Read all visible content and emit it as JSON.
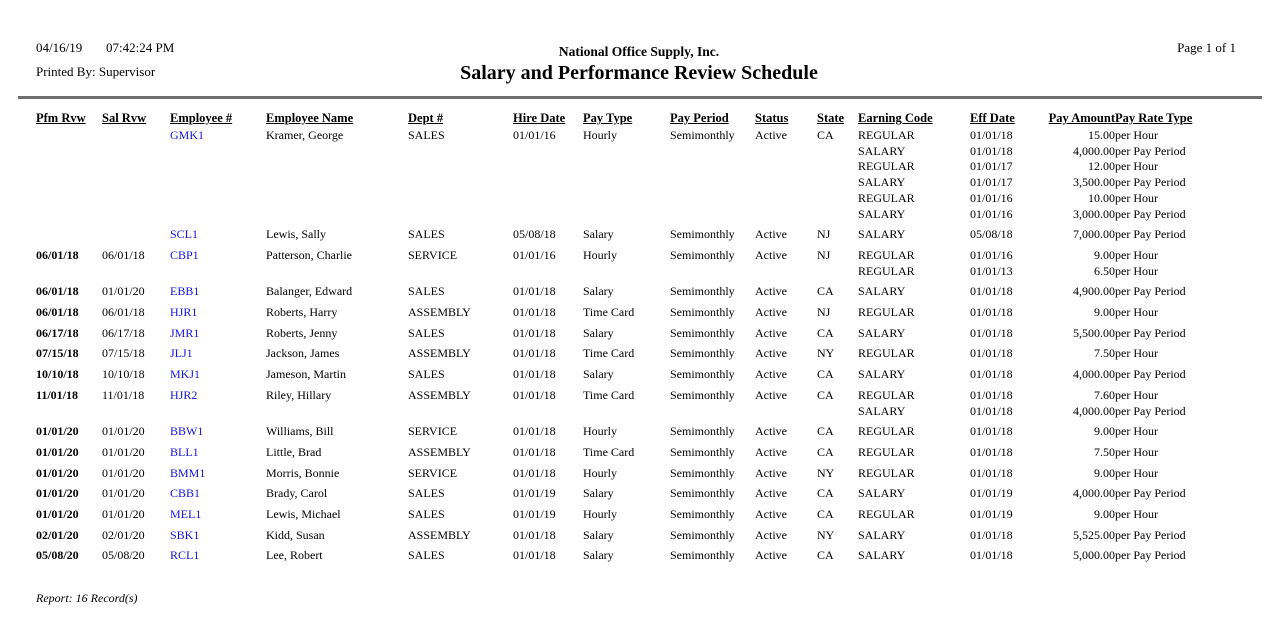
{
  "header": {
    "date": "04/16/19",
    "time": "07:42:24 PM",
    "printed_by": "Printed By: Supervisor",
    "company": "National Office Supply, Inc.",
    "title": "Salary and Performance Review Schedule",
    "page_label": "Page 1 of  1"
  },
  "colors": {
    "link_blue": "#1414e0",
    "rule_gray": "#6e6e6e",
    "text": "#000000"
  },
  "table": {
    "columns": [
      {
        "key": "pfm-rvw",
        "label": "Pfm Rvw"
      },
      {
        "key": "sal-rvw",
        "label": "Sal Rvw"
      },
      {
        "key": "employee-id",
        "label": "Employee #"
      },
      {
        "key": "employee-name",
        "label": "Employee Name"
      },
      {
        "key": "dept",
        "label": "Dept #"
      },
      {
        "key": "hire-date",
        "label": "Hire Date"
      },
      {
        "key": "pay-type",
        "label": "Pay Type"
      },
      {
        "key": "pay-period",
        "label": "Pay Period"
      },
      {
        "key": "status",
        "label": "Status"
      },
      {
        "key": "state",
        "label": "State"
      },
      {
        "key": "earning-code",
        "label": "Earning Code"
      },
      {
        "key": "eff-date",
        "label": "Eff Date"
      },
      {
        "key": "pay-amount",
        "label": "Pay Amount"
      },
      {
        "key": "pay-rate-type",
        "label": "Pay Rate Type"
      }
    ],
    "employees": [
      {
        "pfm_rvw": "",
        "sal_rvw": "",
        "employee_id": "GMK1",
        "name": "Kramer, George",
        "dept": "SALES",
        "hire_date": "01/01/16",
        "pay_type": "Hourly",
        "pay_period": "Semimonthly",
        "status": "Active",
        "state": "CA",
        "earnings": [
          {
            "code": "REGULAR",
            "eff_date": "01/01/18",
            "amount": "15.00",
            "rate_type": "per Hour"
          },
          {
            "code": "SALARY",
            "eff_date": "01/01/18",
            "amount": "4,000.00",
            "rate_type": "per Pay Period"
          },
          {
            "code": "REGULAR",
            "eff_date": "01/01/17",
            "amount": "12.00",
            "rate_type": "per Hour"
          },
          {
            "code": "SALARY",
            "eff_date": "01/01/17",
            "amount": "3,500.00",
            "rate_type": "per Pay Period"
          },
          {
            "code": "REGULAR",
            "eff_date": "01/01/16",
            "amount": "10.00",
            "rate_type": "per Hour"
          },
          {
            "code": "SALARY",
            "eff_date": "01/01/16",
            "amount": "3,000.00",
            "rate_type": "per Pay Period"
          }
        ]
      },
      {
        "pfm_rvw": "",
        "sal_rvw": "",
        "employee_id": "SCL1",
        "name": "Lewis, Sally",
        "dept": "SALES",
        "hire_date": "05/08/18",
        "pay_type": "Salary",
        "pay_period": "Semimonthly",
        "status": "Active",
        "state": "NJ",
        "earnings": [
          {
            "code": "SALARY",
            "eff_date": "05/08/18",
            "amount": "7,000.00",
            "rate_type": "per Pay Period"
          }
        ]
      },
      {
        "pfm_rvw": "06/01/18",
        "sal_rvw": "06/01/18",
        "employee_id": "CBP1",
        "name": "Patterson, Charlie",
        "dept": "SERVICE",
        "hire_date": "01/01/16",
        "pay_type": "Hourly",
        "pay_period": "Semimonthly",
        "status": "Active",
        "state": "NJ",
        "earnings": [
          {
            "code": "REGULAR",
            "eff_date": "01/01/16",
            "amount": "9.00",
            "rate_type": "per Hour"
          },
          {
            "code": "REGULAR",
            "eff_date": "01/01/13",
            "amount": "6.50",
            "rate_type": "per Hour"
          }
        ]
      },
      {
        "pfm_rvw": "06/01/18",
        "sal_rvw": "01/01/20",
        "employee_id": "EBB1",
        "name": "Balanger, Edward",
        "dept": "SALES",
        "hire_date": "01/01/18",
        "pay_type": "Salary",
        "pay_period": "Semimonthly",
        "status": "Active",
        "state": "CA",
        "earnings": [
          {
            "code": "SALARY",
            "eff_date": "01/01/18",
            "amount": "4,900.00",
            "rate_type": "per Pay Period"
          }
        ]
      },
      {
        "pfm_rvw": "06/01/18",
        "sal_rvw": "06/01/18",
        "employee_id": "HJR1",
        "name": "Roberts, Harry",
        "dept": "ASSEMBLY",
        "hire_date": "01/01/18",
        "pay_type": "Time Card",
        "pay_period": "Semimonthly",
        "status": "Active",
        "state": "NJ",
        "earnings": [
          {
            "code": "REGULAR",
            "eff_date": "01/01/18",
            "amount": "9.00",
            "rate_type": "per Hour"
          }
        ]
      },
      {
        "pfm_rvw": "06/17/18",
        "sal_rvw": "06/17/18",
        "employee_id": "JMR1",
        "name": "Roberts, Jenny",
        "dept": "SALES",
        "hire_date": "01/01/18",
        "pay_type": "Salary",
        "pay_period": "Semimonthly",
        "status": "Active",
        "state": "CA",
        "earnings": [
          {
            "code": "SALARY",
            "eff_date": "01/01/18",
            "amount": "5,500.00",
            "rate_type": "per Pay Period"
          }
        ]
      },
      {
        "pfm_rvw": "07/15/18",
        "sal_rvw": "07/15/18",
        "employee_id": "JLJ1",
        "name": "Jackson, James",
        "dept": "ASSEMBLY",
        "hire_date": "01/01/18",
        "pay_type": "Time Card",
        "pay_period": "Semimonthly",
        "status": "Active",
        "state": "NY",
        "earnings": [
          {
            "code": "REGULAR",
            "eff_date": "01/01/18",
            "amount": "7.50",
            "rate_type": "per Hour"
          }
        ]
      },
      {
        "pfm_rvw": "10/10/18",
        "sal_rvw": "10/10/18",
        "employee_id": "MKJ1",
        "name": "Jameson, Martin",
        "dept": "SALES",
        "hire_date": "01/01/18",
        "pay_type": "Salary",
        "pay_period": "Semimonthly",
        "status": "Active",
        "state": "CA",
        "earnings": [
          {
            "code": "SALARY",
            "eff_date": "01/01/18",
            "amount": "4,000.00",
            "rate_type": "per Pay Period"
          }
        ]
      },
      {
        "pfm_rvw": "11/01/18",
        "sal_rvw": "11/01/18",
        "employee_id": "HJR2",
        "name": "Riley, Hillary",
        "dept": "ASSEMBLY",
        "hire_date": "01/01/18",
        "pay_type": "Time Card",
        "pay_period": "Semimonthly",
        "status": "Active",
        "state": "CA",
        "earnings": [
          {
            "code": "REGULAR",
            "eff_date": "01/01/18",
            "amount": "7.60",
            "rate_type": "per Hour"
          },
          {
            "code": "SALARY",
            "eff_date": "01/01/18",
            "amount": "4,000.00",
            "rate_type": "per Pay Period"
          }
        ]
      },
      {
        "pfm_rvw": "01/01/20",
        "sal_rvw": "01/01/20",
        "employee_id": "BBW1",
        "name": "Williams, Bill",
        "dept": "SERVICE",
        "hire_date": "01/01/18",
        "pay_type": "Hourly",
        "pay_period": "Semimonthly",
        "status": "Active",
        "state": "CA",
        "earnings": [
          {
            "code": "REGULAR",
            "eff_date": "01/01/18",
            "amount": "9.00",
            "rate_type": "per Hour"
          }
        ]
      },
      {
        "pfm_rvw": "01/01/20",
        "sal_rvw": "01/01/20",
        "employee_id": "BLL1",
        "name": "Little, Brad",
        "dept": "ASSEMBLY",
        "hire_date": "01/01/18",
        "pay_type": "Time Card",
        "pay_period": "Semimonthly",
        "status": "Active",
        "state": "CA",
        "earnings": [
          {
            "code": "REGULAR",
            "eff_date": "01/01/18",
            "amount": "7.50",
            "rate_type": "per Hour"
          }
        ]
      },
      {
        "pfm_rvw": "01/01/20",
        "sal_rvw": "01/01/20",
        "employee_id": "BMM1",
        "name": "Morris, Bonnie",
        "dept": "SERVICE",
        "hire_date": "01/01/18",
        "pay_type": "Hourly",
        "pay_period": "Semimonthly",
        "status": "Active",
        "state": "NY",
        "earnings": [
          {
            "code": "REGULAR",
            "eff_date": "01/01/18",
            "amount": "9.00",
            "rate_type": "per Hour"
          }
        ]
      },
      {
        "pfm_rvw": "01/01/20",
        "sal_rvw": "01/01/20",
        "employee_id": "CBB1",
        "name": "Brady, Carol",
        "dept": "SALES",
        "hire_date": "01/01/19",
        "pay_type": "Salary",
        "pay_period": "Semimonthly",
        "status": "Active",
        "state": "CA",
        "earnings": [
          {
            "code": "SALARY",
            "eff_date": "01/01/19",
            "amount": "4,000.00",
            "rate_type": "per Pay Period"
          }
        ]
      },
      {
        "pfm_rvw": "01/01/20",
        "sal_rvw": "01/01/20",
        "employee_id": "MEL1",
        "name": "Lewis, Michael",
        "dept": "SALES",
        "hire_date": "01/01/19",
        "pay_type": "Hourly",
        "pay_period": "Semimonthly",
        "status": "Active",
        "state": "CA",
        "earnings": [
          {
            "code": "REGULAR",
            "eff_date": "01/01/19",
            "amount": "9.00",
            "rate_type": "per Hour"
          }
        ]
      },
      {
        "pfm_rvw": "02/01/20",
        "sal_rvw": "02/01/20",
        "employee_id": "SBK1",
        "name": "Kidd, Susan",
        "dept": "ASSEMBLY",
        "hire_date": "01/01/18",
        "pay_type": "Salary",
        "pay_period": "Semimonthly",
        "status": "Active",
        "state": "NY",
        "earnings": [
          {
            "code": "SALARY",
            "eff_date": "01/01/18",
            "amount": "5,525.00",
            "rate_type": "per Pay Period"
          }
        ]
      },
      {
        "pfm_rvw": "05/08/20",
        "sal_rvw": "05/08/20",
        "employee_id": "RCL1",
        "name": "Lee, Robert",
        "dept": "SALES",
        "hire_date": "01/01/18",
        "pay_type": "Salary",
        "pay_period": "Semimonthly",
        "status": "Active",
        "state": "CA",
        "earnings": [
          {
            "code": "SALARY",
            "eff_date": "01/01/18",
            "amount": "5,000.00",
            "rate_type": "per Pay Period"
          }
        ]
      }
    ]
  },
  "footer": {
    "summary": "Report: 16 Record(s)"
  }
}
